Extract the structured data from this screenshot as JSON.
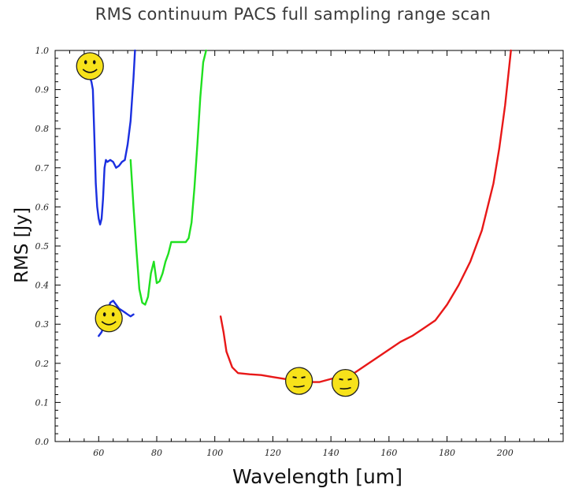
{
  "chart_data": {
    "type": "line",
    "title": "RMS continuum PACS full sampling range scan",
    "xlabel": "Wavelength [um]",
    "ylabel": "RMS [Jy]",
    "xlim": [
      45,
      220
    ],
    "ylim": [
      0.0,
      1.0
    ],
    "xticks": [
      60,
      80,
      100,
      120,
      140,
      160,
      180,
      200
    ],
    "xtick_labels": [
      "60",
      "80",
      "100",
      "120",
      "140",
      "160",
      "180",
      "200"
    ],
    "yticks": [
      0.0,
      0.1,
      0.2,
      0.3,
      0.4,
      0.5,
      0.6,
      0.7,
      0.8,
      0.9,
      1.0
    ],
    "ytick_labels": [
      "0.0",
      "0.1",
      "0.2",
      "0.3",
      "0.4",
      "0.5",
      "0.6",
      "0.7",
      "0.8",
      "0.9",
      "1.0"
    ],
    "grid": false,
    "legend": "none",
    "series": [
      {
        "color": "#1a2fe0",
        "x": [
          57,
          57.5,
          58,
          58.5,
          59,
          59.5,
          60,
          60.5,
          61,
          61.5,
          62,
          62.5,
          63,
          64,
          65,
          66,
          67,
          68,
          69,
          70,
          71,
          72,
          72.5
        ],
        "y": [
          0.93,
          0.92,
          0.9,
          0.78,
          0.66,
          0.6,
          0.57,
          0.555,
          0.57,
          0.62,
          0.7,
          0.72,
          0.715,
          0.72,
          0.715,
          0.7,
          0.705,
          0.715,
          0.72,
          0.76,
          0.82,
          0.93,
          1.0
        ]
      },
      {
        "color": "#1a2fe0",
        "x": [
          60,
          61,
          62,
          63,
          64,
          65,
          66,
          67,
          68,
          69,
          70,
          71,
          72
        ],
        "y": [
          0.27,
          0.28,
          0.3,
          0.33,
          0.355,
          0.36,
          0.35,
          0.34,
          0.335,
          0.33,
          0.325,
          0.32,
          0.325
        ]
      },
      {
        "color": "#20e020",
        "x": [
          71,
          72,
          73,
          74,
          75,
          76,
          77,
          78,
          79,
          80,
          81,
          82,
          83,
          84,
          85,
          86,
          88,
          90,
          91,
          92,
          93,
          94,
          95,
          96,
          97
        ],
        "y": [
          0.72,
          0.6,
          0.49,
          0.39,
          0.355,
          0.35,
          0.37,
          0.43,
          0.46,
          0.405,
          0.41,
          0.43,
          0.46,
          0.48,
          0.51,
          0.51,
          0.51,
          0.51,
          0.52,
          0.56,
          0.65,
          0.76,
          0.88,
          0.97,
          1.0
        ]
      },
      {
        "color": "#e81818",
        "x": [
          102,
          103,
          104,
          106,
          108,
          112,
          116,
          120,
          124,
          128,
          132,
          136,
          140,
          144,
          148,
          152,
          156,
          160,
          164,
          168,
          172,
          176,
          180,
          184,
          188,
          192,
          196,
          198,
          200,
          201,
          202
        ],
        "y": [
          0.32,
          0.28,
          0.23,
          0.19,
          0.175,
          0.172,
          0.17,
          0.165,
          0.16,
          0.155,
          0.152,
          0.152,
          0.16,
          0.165,
          0.175,
          0.195,
          0.215,
          0.235,
          0.255,
          0.27,
          0.29,
          0.31,
          0.35,
          0.4,
          0.46,
          0.54,
          0.66,
          0.75,
          0.86,
          0.93,
          1.0
        ]
      }
    ],
    "annotations": [
      {
        "icon": "smiley-face-icon",
        "x": 57,
        "y": 0.96,
        "expression": "smile"
      },
      {
        "icon": "smiley-face-icon",
        "x": 63.5,
        "y": 0.315,
        "expression": "smile"
      },
      {
        "icon": "smiley-face-icon",
        "x": 129,
        "y": 0.155,
        "expression": "neutral"
      },
      {
        "icon": "smiley-face-icon",
        "x": 145,
        "y": 0.15,
        "expression": "neutral"
      }
    ]
  }
}
